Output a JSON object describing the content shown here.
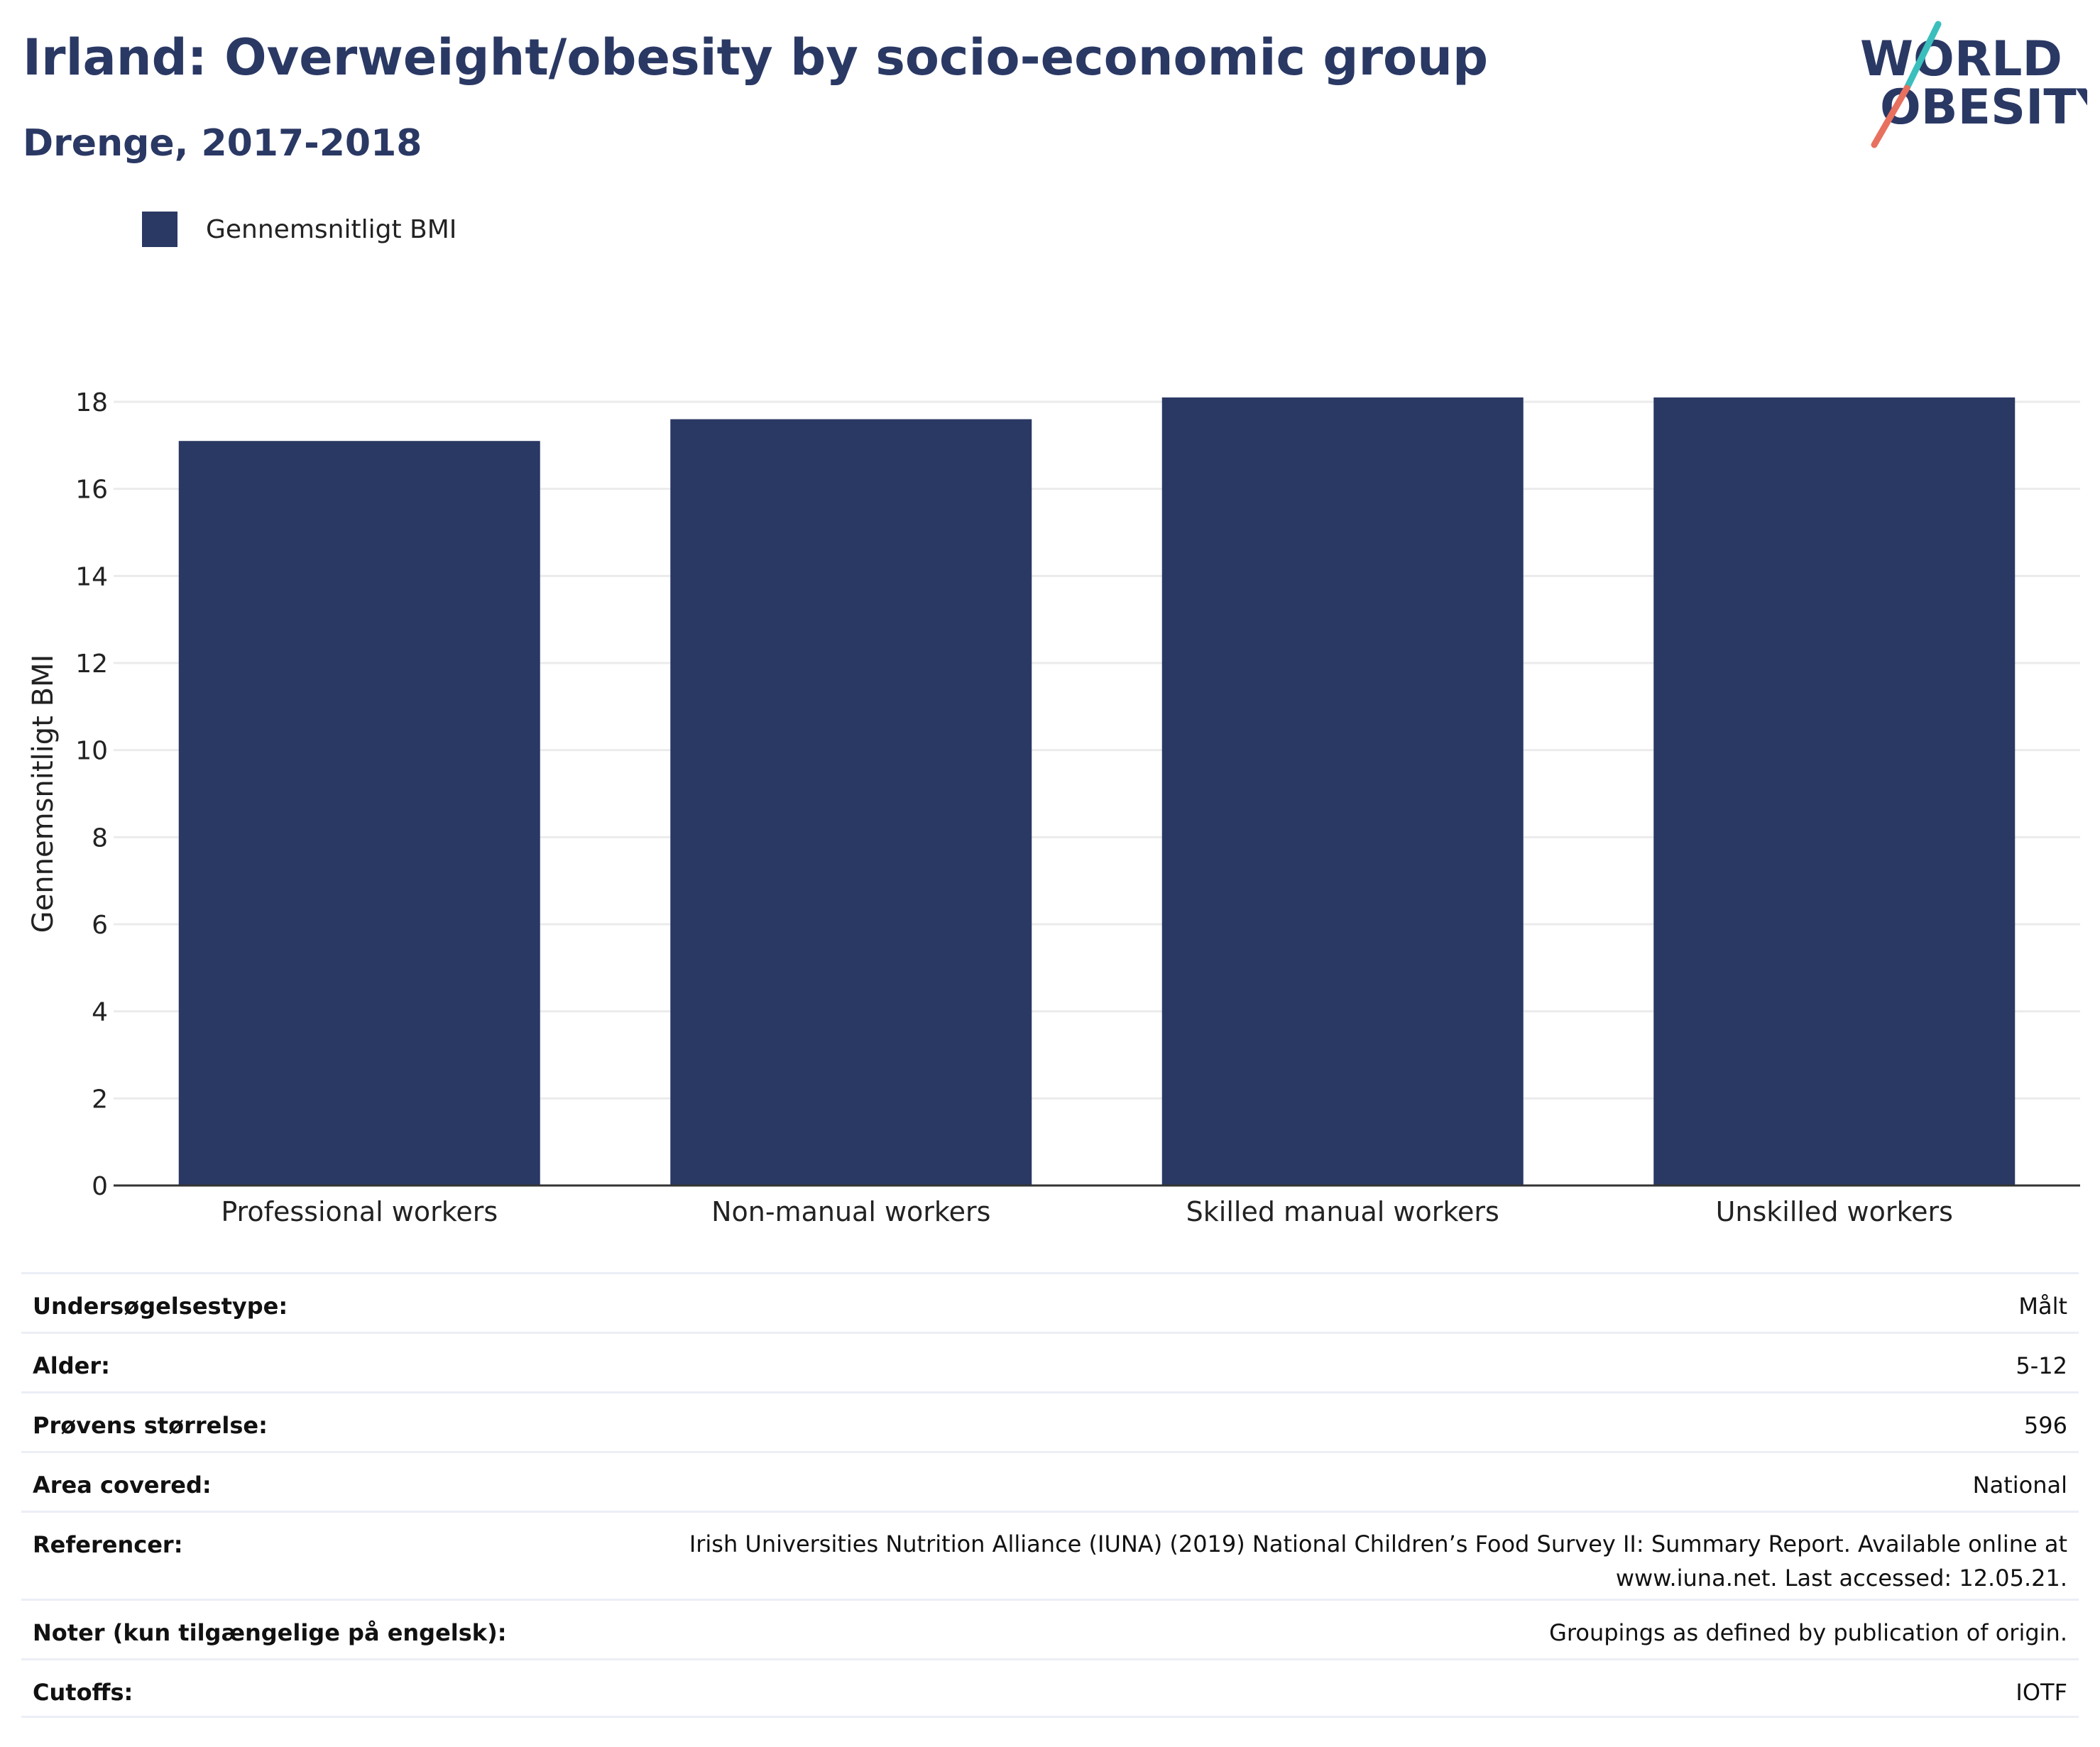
{
  "header": {
    "title": "Irland: Overweight/obesity by socio-economic group",
    "subtitle": "Drenge, 2017-2018"
  },
  "logo": {
    "line1": "WORLD",
    "line2": "OBESITY",
    "colors": {
      "text": "#2a3864",
      "slash_top": "#3bbfbd",
      "slash_bottom": "#e8705f"
    }
  },
  "colors": {
    "bar": "#2a3864",
    "grid": "#ebebeb",
    "axis": "#333333"
  },
  "chart_data": {
    "type": "bar",
    "categories": [
      "Professional workers",
      "Non-manual workers",
      "Skilled manual workers",
      "Unskilled workers"
    ],
    "series": [
      {
        "name": "Gennemsnitligt BMI",
        "values": [
          17.1,
          17.6,
          18.1,
          18.1
        ]
      }
    ],
    "ylabel": "Gennemsnitligt BMI",
    "ylim": [
      0,
      18
    ],
    "yticks": [
      0,
      2,
      4,
      6,
      8,
      10,
      12,
      14,
      16,
      18
    ],
    "grid": true,
    "legend": "top-left"
  },
  "details": [
    {
      "label": "Undersøgelsestype:",
      "value": "Målt"
    },
    {
      "label": "Alder:",
      "value": "5-12"
    },
    {
      "label": "Prøvens størrelse:",
      "value": "596"
    },
    {
      "label": "Area covered:",
      "value": "National"
    },
    {
      "label": "Referencer:",
      "value": "Irish Universities Nutrition Alliance (IUNA) (2019) National Children’s Food Survey II: Summary Report. Available online at www.iuna.net. Last accessed: 12.05.21."
    },
    {
      "label": "Noter (kun tilgængelige på engelsk):",
      "value": "Groupings as defined by publication of origin."
    },
    {
      "label": "Cutoffs:",
      "value": "IOTF"
    }
  ]
}
